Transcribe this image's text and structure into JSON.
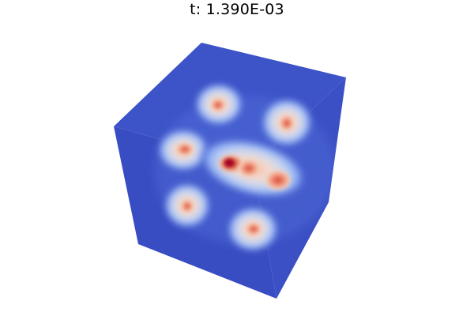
{
  "title": "t: 1.390E-03",
  "colormap": {
    "name": "coolwarm",
    "low": "#3a4cc0",
    "mid": "#dddcdc",
    "high": "#b40426"
  },
  "background": "#ffffff"
}
